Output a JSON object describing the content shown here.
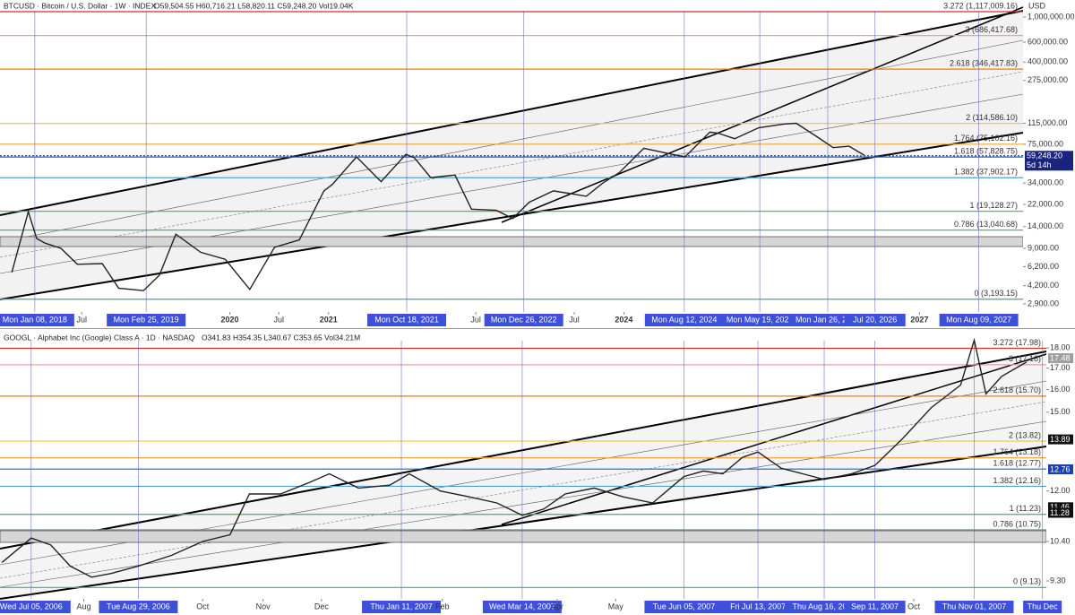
{
  "chart_data": [
    {
      "type": "line",
      "scale": "log",
      "title": "BTCUSD · Bitcoin / U.S. Dollar · 1W · INDEX",
      "subtitle": "O59,504.55 H60,716.21 L58,820.11 C59,248.20 Vol19.04K",
      "axis_unit": "USD",
      "xlim": [
        "2017-09-01",
        "2028-01-20"
      ],
      "ylim": [
        2460,
        1416000
      ],
      "xticks": [
        {
          "value": "2018-01-08",
          "label": "Mon Jan 08, 2018",
          "highlight": true
        },
        {
          "value": "2018-07-01",
          "label": "Jul",
          "highlight": false
        },
        {
          "value": "2019-02-25",
          "label": "Mon Feb 25, 2019",
          "highlight": true
        },
        {
          "value": "2020-01-01",
          "label": "2020",
          "highlight": false
        },
        {
          "value": "2020-07-01",
          "label": "Jul",
          "highlight": false
        },
        {
          "value": "2021-01-01",
          "label": "2021",
          "highlight": false
        },
        {
          "value": "2021-10-18",
          "label": "Mon Oct 18, 2021",
          "highlight": true
        },
        {
          "value": "2022-07-01",
          "label": "Jul",
          "highlight": false
        },
        {
          "value": "2022-12-26",
          "label": "Mon Dec 26, 2022",
          "highlight": true
        },
        {
          "value": "2023-07-01",
          "label": "Jul",
          "highlight": false
        },
        {
          "value": "2024-01-01",
          "label": "2024",
          "highlight": false
        },
        {
          "value": "2024-08-12",
          "label": "Mon Aug 12, 2024",
          "highlight": true
        },
        {
          "value": "2025-05-19",
          "label": "Mon May 19, 2025",
          "highlight": true
        },
        {
          "value": "2026-01-26",
          "label": "Mon Jan 26, 2026",
          "highlight": true
        },
        {
          "value": "2026-07-20",
          "label": "Jul 20, 2026",
          "highlight": true
        },
        {
          "value": "2027-01-01",
          "label": "2027",
          "highlight": false
        },
        {
          "value": "2027-08-09",
          "label": "Mon Aug 09, 2027",
          "highlight": true
        }
      ],
      "yticks": [
        {
          "value": 1000000,
          "label": "1,000,000.00"
        },
        {
          "value": 600000,
          "label": "600,000.00"
        },
        {
          "value": 400000,
          "label": "400,000.00"
        },
        {
          "value": 275000,
          "label": "275,000.00"
        },
        {
          "value": 115000,
          "label": "115,000.00"
        },
        {
          "value": 75000,
          "label": "75,000.00"
        },
        {
          "value": 34000,
          "label": "34,000.00"
        },
        {
          "value": 22000,
          "label": "22,000.00"
        },
        {
          "value": 14000,
          "label": "14,000.00"
        },
        {
          "value": 9000,
          "label": "9,000.00"
        },
        {
          "value": 6200,
          "label": "6,200.00"
        },
        {
          "value": 4200,
          "label": "4,200.00"
        },
        {
          "value": 2900,
          "label": "2,900.00"
        }
      ],
      "fib_levels": [
        {
          "label": "3.272 (1,117,009.16)",
          "value": 1117009.16,
          "color": "#d32f2f"
        },
        {
          "label": "3 (686,417.68)",
          "value": 686417.68,
          "color": "#e8a0a0"
        },
        {
          "label": "2.618 (346,417.83)",
          "value": 346417.83,
          "color": "#f57c00"
        },
        {
          "label": "2 (114,586.10)",
          "value": 114586.1,
          "color": "#f2c230"
        },
        {
          "label": "1.764 (75,102.16)",
          "value": 75102.16,
          "color": "#eea43a"
        },
        {
          "label": "1.618 (57,828.75)",
          "value": 57828.75,
          "color": "#1565c0"
        },
        {
          "label": "1.382 (37,902.17)",
          "value": 37902.17,
          "color": "#4fa3c7"
        },
        {
          "label": "1 (19,128.27)",
          "value": 19128.27,
          "color": "#4caf50"
        },
        {
          "label": "0.786 (13,040.68)",
          "value": 13040.68,
          "color": "#6e8f7e"
        },
        {
          "label": "0 (3,193.15)",
          "value": 3193.15,
          "color": "#4aa39a"
        }
      ],
      "series": [
        {
          "name": "BTCUSD",
          "color": "#222222",
          "x": [
            "2017-10-15",
            "2017-12-15",
            "2018-01-15",
            "2018-02-15",
            "2018-04-15",
            "2018-06-15",
            "2018-09-15",
            "2018-11-15",
            "2019-02-15",
            "2019-04-15",
            "2019-06-15",
            "2019-09-15",
            "2019-12-15",
            "2020-03-15",
            "2020-06-15",
            "2020-09-15",
            "2020-12-15",
            "2021-01-15",
            "2021-04-15",
            "2021-07-15",
            "2021-10-15",
            "2021-11-15",
            "2022-01-15",
            "2022-04-15",
            "2022-06-15",
            "2022-09-15",
            "2022-11-15",
            "2023-01-15",
            "2023-04-15",
            "2023-08-15",
            "2023-10-15",
            "2023-12-15",
            "2024-03-15",
            "2024-06-15",
            "2024-08-15",
            "2024-11-15",
            "2024-12-15",
            "2025-02-15",
            "2025-05-15",
            "2025-08-15",
            "2025-10-01",
            "2025-12-15",
            "2026-02-15",
            "2026-04-15",
            "2026-06-10"
          ],
          "values": [
            5500,
            19000,
            11000,
            10000,
            9000,
            6500,
            6600,
            4000,
            3800,
            5200,
            12000,
            8300,
            7200,
            3900,
            9200,
            10700,
            29000,
            33000,
            58000,
            35000,
            61000,
            57000,
            38000,
            40000,
            20000,
            19500,
            16500,
            23000,
            29000,
            26000,
            34000,
            42000,
            69000,
            62000,
            58000,
            96000,
            94000,
            84000,
            105000,
            113000,
            115000,
            88000,
            70000,
            72000,
            60000
          ]
        }
      ],
      "price_labels": [
        {
          "label": "59,248.20",
          "value": 59248.2,
          "color": "#1a237e",
          "sub": "5d 14h"
        }
      ]
    },
    {
      "type": "line",
      "scale": "log",
      "title": "GOOGL · Alphabet Inc (Google) Class A · 1D · NASDAQ",
      "subtitle": "O341.83 H354.35 L340.67 C353.65 Vol34.21M",
      "xlim": [
        "2006-06-19",
        "2007-12-08"
      ],
      "ylim": [
        8.84,
        18.94
      ],
      "xticks": [
        {
          "value": "2006-07-05",
          "label": "Wed Jul 05, 2006",
          "highlight": true
        },
        {
          "value": "2006-08-01",
          "label": "Aug",
          "highlight": false
        },
        {
          "value": "2006-08-29",
          "label": "Tue Aug 29, 2006",
          "highlight": true
        },
        {
          "value": "2006-10-01",
          "label": "Oct",
          "highlight": false
        },
        {
          "value": "2006-11-01",
          "label": "Nov",
          "highlight": false
        },
        {
          "value": "2006-12-01",
          "label": "Dec",
          "highlight": false
        },
        {
          "value": "2007-01-11",
          "label": "Thu Jan 11, 2007",
          "highlight": true
        },
        {
          "value": "2007-02-01",
          "label": "Feb",
          "highlight": false
        },
        {
          "value": "2007-03-14",
          "label": "Wed Mar 14, 2007",
          "highlight": true
        },
        {
          "value": "2007-04-01",
          "label": "Apr",
          "highlight": false
        },
        {
          "value": "2007-05-01",
          "label": "May",
          "highlight": false
        },
        {
          "value": "2007-06-05",
          "label": "Tue Jun 05, 2007",
          "highlight": true
        },
        {
          "value": "2007-07-13",
          "label": "Fri Jul 13, 2007",
          "highlight": true
        },
        {
          "value": "2007-08-16",
          "label": "Thu Aug 16, 2007",
          "highlight": true
        },
        {
          "value": "2007-09-11",
          "label": "Sep 11, 2007",
          "highlight": true
        },
        {
          "value": "2007-10-01",
          "label": "Oct",
          "highlight": false
        },
        {
          "value": "2007-11-01",
          "label": "Thu Nov 01, 2007",
          "highlight": true
        },
        {
          "value": "2007-12-06",
          "label": "Thu Dec",
          "highlight": true
        }
      ],
      "yticks": [
        {
          "value": 18,
          "label": "18.00"
        },
        {
          "value": 17,
          "label": "17.00"
        },
        {
          "value": 16,
          "label": "16.00"
        },
        {
          "value": 15,
          "label": "15.00"
        },
        {
          "value": 12,
          "label": "12.00"
        },
        {
          "value": 10.4,
          "label": "10.40"
        },
        {
          "value": 9.3,
          "label": "9.30"
        }
      ],
      "fib_levels": [
        {
          "label": "3.272 (17.98)",
          "value": 17.98,
          "color": "#d32f2f"
        },
        {
          "label": "3 (17.16)",
          "value": 17.16,
          "color": "#e8a0a0"
        },
        {
          "label": "2.618 (15.70)",
          "value": 15.7,
          "color": "#f57c00"
        },
        {
          "label": "2 (13.82)",
          "value": 13.82,
          "color": "#f2c230"
        },
        {
          "label": "1.764 (13.18)",
          "value": 13.18,
          "color": "#eea43a"
        },
        {
          "label": "1.618 (12.77)",
          "value": 12.77,
          "color": "#1565c0"
        },
        {
          "label": "1.382 (12.16)",
          "value": 12.16,
          "color": "#4fa3c7"
        },
        {
          "label": "1 (11.23)",
          "value": 11.23,
          "color": "#4caf50"
        },
        {
          "label": "0.786 (10.75)",
          "value": 10.75,
          "color": "#6e8f7e"
        },
        {
          "label": "0 (9.13)",
          "value": 9.13,
          "color": "#4aa39a"
        }
      ],
      "series": [
        {
          "name": "GOOGL",
          "color": "#222222",
          "x": [
            "2006-06-20",
            "2006-07-05",
            "2006-07-15",
            "2006-07-25",
            "2006-08-05",
            "2006-08-15",
            "2006-08-29",
            "2006-09-15",
            "2006-10-01",
            "2006-10-15",
            "2006-10-25",
            "2006-11-10",
            "2006-11-25",
            "2006-12-05",
            "2006-12-20",
            "2007-01-05",
            "2007-01-15",
            "2007-01-31",
            "2007-02-15",
            "2007-03-01",
            "2007-03-14",
            "2007-03-25",
            "2007-04-05",
            "2007-04-20",
            "2007-05-05",
            "2007-05-20",
            "2007-06-05",
            "2007-06-15",
            "2007-06-25",
            "2007-07-05",
            "2007-07-13",
            "2007-07-25",
            "2007-08-05",
            "2007-08-16",
            "2007-08-30",
            "2007-09-11",
            "2007-09-25",
            "2007-10-10",
            "2007-10-25",
            "2007-11-01",
            "2007-11-07",
            "2007-11-15",
            "2007-11-28"
          ],
          "values": [
            9.8,
            10.5,
            10.3,
            9.7,
            9.4,
            9.5,
            9.7,
            10.0,
            10.4,
            10.6,
            11.9,
            11.9,
            12.3,
            12.6,
            12.1,
            12.2,
            12.6,
            12.0,
            11.8,
            11.6,
            11.2,
            11.4,
            11.9,
            12.1,
            11.8,
            11.6,
            12.5,
            12.7,
            12.6,
            13.2,
            13.4,
            12.8,
            12.6,
            12.4,
            12.6,
            12.9,
            13.9,
            15.2,
            16.2,
            18.4,
            15.8,
            16.6,
            17.3
          ]
        }
      ],
      "price_labels": [
        {
          "label": "17.48",
          "value": 17.48,
          "color": "#9e9e9e"
        },
        {
          "label": "13.89",
          "value": 13.89,
          "color": "#111111"
        },
        {
          "label": "12.76",
          "value": 12.76,
          "color": "#1a3fb0"
        },
        {
          "label": "11.46",
          "value": 11.46,
          "color": "#111111"
        },
        {
          "label": "11.28",
          "value": 11.28,
          "color": "#111111"
        }
      ]
    }
  ]
}
